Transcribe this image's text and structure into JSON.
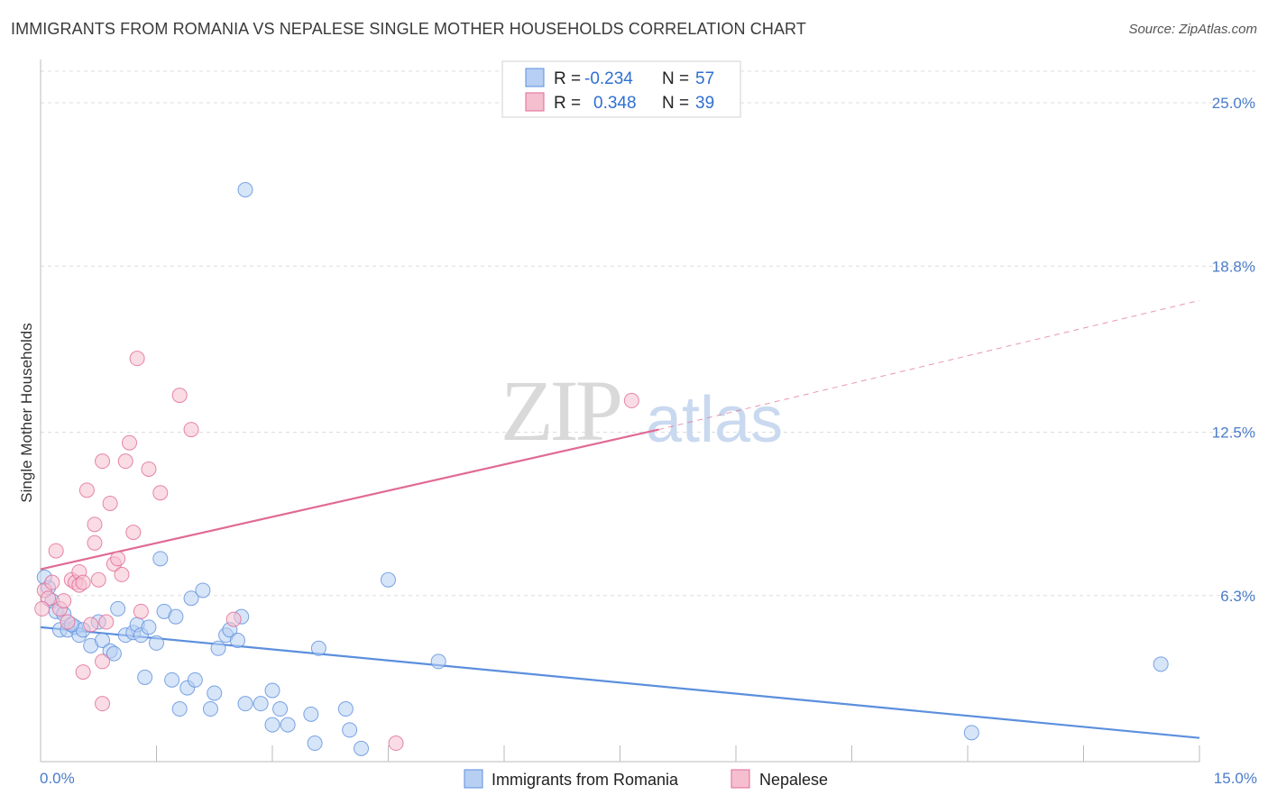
{
  "title": "IMMIGRANTS FROM ROMANIA VS NEPALESE SINGLE MOTHER HOUSEHOLDS CORRELATION CHART",
  "source": "Source: ZipAtlas.com",
  "watermark": {
    "zip": "ZIP",
    "atlas": "atlas"
  },
  "colors": {
    "blue": "#5b8fdd",
    "blue_fill": "#b7cff2",
    "pink": "#e06a95",
    "pink_fill": "#f5bfd0",
    "grid": "#dddddd",
    "tick_text": "#4a7cc9"
  },
  "legend": {
    "rows": [
      {
        "r_label": "R =",
        "r_value": "-0.234",
        "n_label": "N =",
        "n_value": "57",
        "color": "#b7cff2",
        "border": "#5b8fdd"
      },
      {
        "r_label": "R =",
        "r_value": "0.348",
        "n_label": "N =",
        "n_value": "39",
        "color": "#f5bfd0",
        "border": "#e06a95"
      }
    ]
  },
  "bottom_legend": [
    {
      "label": "Immigrants from Romania",
      "color": "#b7cff2",
      "border": "#5b8fdd"
    },
    {
      "label": "Nepalese",
      "color": "#f5bfd0",
      "border": "#e06a95"
    }
  ],
  "chart_data": {
    "type": "scatter",
    "title": "IMMIGRANTS FROM ROMANIA VS NEPALESE SINGLE MOTHER HOUSEHOLDS CORRELATION CHART",
    "xlabel": "",
    "ylabel": "Single Mother Households",
    "xlim": [
      0,
      15
    ],
    "ylim": [
      0,
      26.3
    ],
    "y_ticks": [
      {
        "value": 6.3,
        "label": "6.3%"
      },
      {
        "value": 12.5,
        "label": "12.5%"
      },
      {
        "value": 18.8,
        "label": "18.8%"
      },
      {
        "value": 25.0,
        "label": "25.0%"
      }
    ],
    "x_tick_labels": [
      {
        "value": 0,
        "label": "0.0%"
      },
      {
        "value": 15,
        "label": "15.0%"
      }
    ],
    "x_minor_ticks": [
      1.5,
      3.0,
      4.5,
      6.0,
      7.5,
      9.0,
      10.5,
      12.0,
      13.5,
      15.0
    ],
    "grid": true,
    "legend_position": "top-center",
    "series": [
      {
        "name": "Immigrants from Romania",
        "color": "#5b8fdd",
        "fill": "#b7cff2",
        "trend": {
          "x": [
            0,
            15
          ],
          "y": [
            5.1,
            0.9
          ],
          "style": "solid"
        },
        "points": [
          [
            0.1,
            6.6
          ],
          [
            0.15,
            6.1
          ],
          [
            0.2,
            5.7
          ],
          [
            0.25,
            5.0
          ],
          [
            0.3,
            5.6
          ],
          [
            0.35,
            5.0
          ],
          [
            0.45,
            5.1
          ],
          [
            0.5,
            4.8
          ],
          [
            0.55,
            5.0
          ],
          [
            0.65,
            4.4
          ],
          [
            0.75,
            5.3
          ],
          [
            0.8,
            4.6
          ],
          [
            0.9,
            4.2
          ],
          [
            0.95,
            4.1
          ],
          [
            1.0,
            5.8
          ],
          [
            1.1,
            4.8
          ],
          [
            1.2,
            4.9
          ],
          [
            1.25,
            5.2
          ],
          [
            1.3,
            4.8
          ],
          [
            1.35,
            3.2
          ],
          [
            1.4,
            5.1
          ],
          [
            1.5,
            4.5
          ],
          [
            1.55,
            7.7
          ],
          [
            1.6,
            5.7
          ],
          [
            1.7,
            3.1
          ],
          [
            1.75,
            5.5
          ],
          [
            1.8,
            2.0
          ],
          [
            1.9,
            2.8
          ],
          [
            1.95,
            6.2
          ],
          [
            2.0,
            3.1
          ],
          [
            2.1,
            6.5
          ],
          [
            2.2,
            2.0
          ],
          [
            2.25,
            2.6
          ],
          [
            2.3,
            4.3
          ],
          [
            2.4,
            4.8
          ],
          [
            2.45,
            5.0
          ],
          [
            2.55,
            4.6
          ],
          [
            2.6,
            5.5
          ],
          [
            2.65,
            2.2
          ],
          [
            2.65,
            21.7
          ],
          [
            2.85,
            2.2
          ],
          [
            3.0,
            2.7
          ],
          [
            3.0,
            1.4
          ],
          [
            3.1,
            2.0
          ],
          [
            3.2,
            1.4
          ],
          [
            3.6,
            4.3
          ],
          [
            3.5,
            1.8
          ],
          [
            3.55,
            0.7
          ],
          [
            3.95,
            2.0
          ],
          [
            4.0,
            1.2
          ],
          [
            4.15,
            0.5
          ],
          [
            4.5,
            6.9
          ],
          [
            5.15,
            3.8
          ],
          [
            12.05,
            1.1
          ],
          [
            14.5,
            3.7
          ],
          [
            0.05,
            7.0
          ],
          [
            0.4,
            5.2
          ]
        ]
      },
      {
        "name": "Nepalese",
        "color": "#e06a95",
        "fill": "#f5bfd0",
        "trend": {
          "x": [
            0,
            8.0
          ],
          "y": [
            7.3,
            12.6
          ],
          "style": "solid",
          "extend_to": [
            15,
            17.5
          ],
          "extend_style": "dashed"
        },
        "points": [
          [
            0.05,
            6.5
          ],
          [
            0.1,
            6.2
          ],
          [
            0.15,
            6.8
          ],
          [
            0.2,
            8.0
          ],
          [
            0.25,
            5.8
          ],
          [
            0.3,
            6.1
          ],
          [
            0.35,
            5.3
          ],
          [
            0.4,
            6.9
          ],
          [
            0.45,
            6.8
          ],
          [
            0.5,
            7.2
          ],
          [
            0.5,
            6.7
          ],
          [
            0.55,
            6.8
          ],
          [
            0.55,
            3.4
          ],
          [
            0.6,
            10.3
          ],
          [
            0.65,
            5.2
          ],
          [
            0.7,
            9.0
          ],
          [
            0.7,
            8.3
          ],
          [
            0.75,
            6.9
          ],
          [
            0.8,
            3.8
          ],
          [
            0.8,
            11.4
          ],
          [
            0.8,
            2.2
          ],
          [
            0.85,
            5.3
          ],
          [
            0.9,
            9.8
          ],
          [
            0.95,
            7.5
          ],
          [
            1.0,
            7.7
          ],
          [
            1.05,
            7.1
          ],
          [
            1.1,
            11.4
          ],
          [
            1.15,
            12.1
          ],
          [
            1.2,
            8.7
          ],
          [
            1.25,
            15.3
          ],
          [
            1.3,
            5.7
          ],
          [
            1.4,
            11.1
          ],
          [
            1.55,
            10.2
          ],
          [
            1.8,
            13.9
          ],
          [
            1.95,
            12.6
          ],
          [
            2.5,
            5.4
          ],
          [
            4.6,
            0.7
          ],
          [
            7.65,
            13.7
          ],
          [
            0.02,
            5.8
          ]
        ]
      }
    ]
  }
}
